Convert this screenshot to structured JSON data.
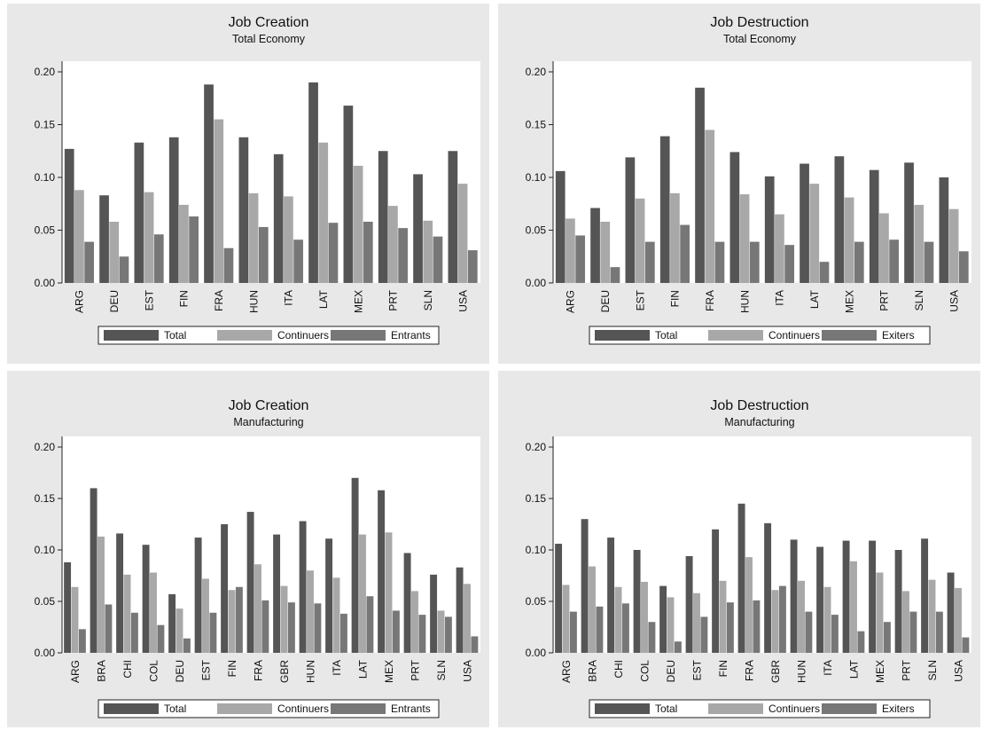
{
  "chart_data": [
    {
      "type": "bar",
      "title": "Job Creation",
      "subtitle": "Total Economy",
      "categories": [
        "ARG",
        "DEU",
        "EST",
        "FIN",
        "FRA",
        "HUN",
        "ITA",
        "LAT",
        "MEX",
        "PRT",
        "SLN",
        "USA"
      ],
      "series": [
        {
          "name": "Total",
          "values": [
            0.127,
            0.083,
            0.133,
            0.138,
            0.188,
            0.138,
            0.122,
            0.19,
            0.168,
            0.125,
            0.103,
            0.125
          ]
        },
        {
          "name": "Continuers",
          "values": [
            0.088,
            0.058,
            0.086,
            0.074,
            0.155,
            0.085,
            0.082,
            0.133,
            0.111,
            0.073,
            0.059,
            0.094
          ]
        },
        {
          "name": "Entrants",
          "values": [
            0.039,
            0.025,
            0.046,
            0.063,
            0.033,
            0.053,
            0.041,
            0.057,
            0.058,
            0.052,
            0.044,
            0.031
          ]
        }
      ],
      "ylim": [
        0,
        0.2
      ],
      "yticks": [
        "0.00",
        "0.05",
        "0.10",
        "0.15",
        "0.20"
      ],
      "legend": "bottom",
      "colors": [
        "#555555",
        "#a8a8a8",
        "#777777"
      ]
    },
    {
      "type": "bar",
      "title": "Job Destruction",
      "subtitle": "Total Economy",
      "categories": [
        "ARG",
        "DEU",
        "EST",
        "FIN",
        "FRA",
        "HUN",
        "ITA",
        "LAT",
        "MEX",
        "PRT",
        "SLN",
        "USA"
      ],
      "series": [
        {
          "name": "Total",
          "values": [
            0.106,
            0.071,
            0.119,
            0.139,
            0.185,
            0.124,
            0.101,
            0.113,
            0.12,
            0.107,
            0.114,
            0.1
          ]
        },
        {
          "name": "Continuers",
          "values": [
            0.061,
            0.058,
            0.08,
            0.085,
            0.145,
            0.084,
            0.065,
            0.094,
            0.081,
            0.066,
            0.074,
            0.07
          ]
        },
        {
          "name": "Exiters",
          "values": [
            0.045,
            0.015,
            0.039,
            0.055,
            0.039,
            0.039,
            0.036,
            0.02,
            0.039,
            0.041,
            0.039,
            0.03
          ]
        }
      ],
      "ylim": [
        0,
        0.2
      ],
      "yticks": [
        "0.00",
        "0.05",
        "0.10",
        "0.15",
        "0.20"
      ],
      "legend": "bottom",
      "colors": [
        "#555555",
        "#a8a8a8",
        "#777777"
      ]
    },
    {
      "type": "bar",
      "title": "Job Creation",
      "subtitle": "Manufacturing",
      "categories": [
        "ARG",
        "BRA",
        "CHI",
        "COL",
        "DEU",
        "EST",
        "FIN",
        "FRA",
        "GBR",
        "HUN",
        "ITA",
        "LAT",
        "MEX",
        "PRT",
        "SLN",
        "USA"
      ],
      "series": [
        {
          "name": "Total",
          "values": [
            0.088,
            0.16,
            0.116,
            0.105,
            0.057,
            0.112,
            0.125,
            0.137,
            0.115,
            0.128,
            0.111,
            0.17,
            0.158,
            0.097,
            0.076,
            0.083
          ]
        },
        {
          "name": "Continuers",
          "values": [
            0.064,
            0.113,
            0.076,
            0.078,
            0.043,
            0.072,
            0.061,
            0.086,
            0.065,
            0.08,
            0.073,
            0.115,
            0.117,
            0.06,
            0.041,
            0.067
          ]
        },
        {
          "name": "Entrants",
          "values": [
            0.023,
            0.047,
            0.039,
            0.027,
            0.014,
            0.039,
            0.064,
            0.051,
            0.049,
            0.048,
            0.038,
            0.055,
            0.041,
            0.037,
            0.035,
            0.016
          ]
        }
      ],
      "ylim": [
        0,
        0.2
      ],
      "yticks": [
        "0.00",
        "0.05",
        "0.10",
        "0.15",
        "0.20"
      ],
      "legend": "bottom",
      "colors": [
        "#555555",
        "#a8a8a8",
        "#777777"
      ]
    },
    {
      "type": "bar",
      "title": "Job Destruction",
      "subtitle": "Manufacturing",
      "categories": [
        "ARG",
        "BRA",
        "CHI",
        "COL",
        "DEU",
        "EST",
        "FIN",
        "FRA",
        "GBR",
        "HUN",
        "ITA",
        "LAT",
        "MEX",
        "PRT",
        "SLN",
        "USA"
      ],
      "series": [
        {
          "name": "Total",
          "values": [
            0.106,
            0.13,
            0.112,
            0.1,
            0.065,
            0.094,
            0.12,
            0.145,
            0.126,
            0.11,
            0.103,
            0.109,
            0.109,
            0.1,
            0.111,
            0.078
          ]
        },
        {
          "name": "Continuers",
          "values": [
            0.066,
            0.084,
            0.064,
            0.069,
            0.054,
            0.058,
            0.07,
            0.093,
            0.061,
            0.07,
            0.064,
            0.089,
            0.078,
            0.06,
            0.071,
            0.063
          ]
        },
        {
          "name": "Exiters",
          "values": [
            0.04,
            0.045,
            0.048,
            0.03,
            0.011,
            0.035,
            0.049,
            0.051,
            0.065,
            0.04,
            0.037,
            0.021,
            0.03,
            0.04,
            0.04,
            0.015
          ]
        }
      ],
      "ylim": [
        0,
        0.2
      ],
      "yticks": [
        "0.00",
        "0.05",
        "0.10",
        "0.15",
        "0.20"
      ],
      "legend": "bottom",
      "colors": [
        "#555555",
        "#a8a8a8",
        "#777777"
      ]
    }
  ]
}
